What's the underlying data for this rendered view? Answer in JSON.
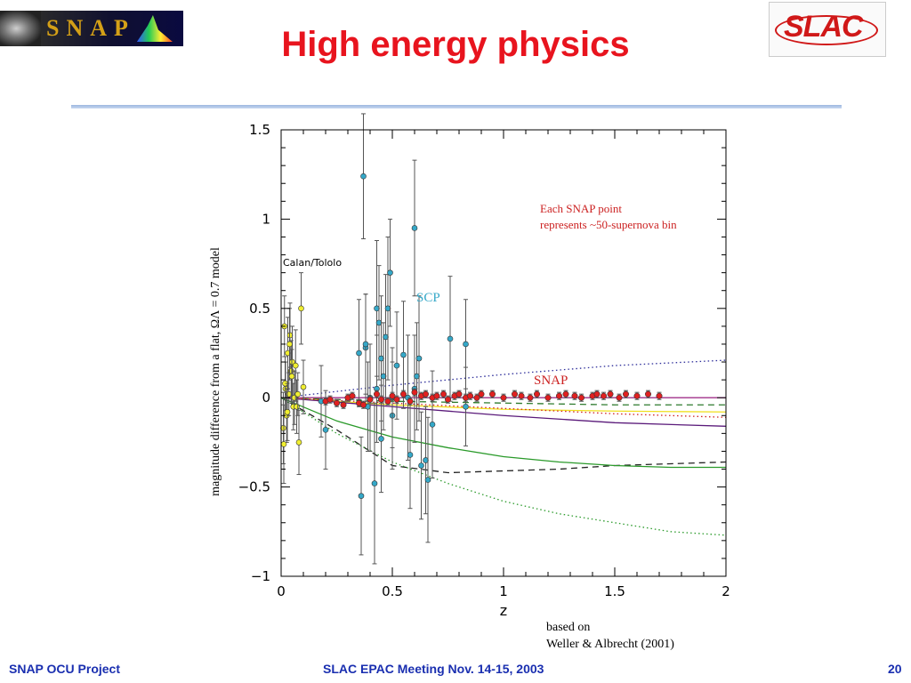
{
  "slide": {
    "title": "High energy physics",
    "footer_left": "SNAP OCU Project",
    "footer_center": "SLAC EPAC Meeting Nov. 14-15, 2003",
    "footer_right": "20"
  },
  "logos": {
    "left_word": "SNAP",
    "right_word": "SLAC"
  },
  "chart_data": {
    "type": "scatter",
    "xlabel": "z",
    "ylabel": "magnitude difference from a flat, ΩΛ = 0.7 model",
    "xlim": [
      0,
      2
    ],
    "ylim": [
      -1,
      1.5
    ],
    "xticks": [
      "0",
      "0.5",
      "1",
      "1.5",
      "2"
    ],
    "yticks": [
      "−1",
      "−0.5",
      "0",
      "0.5",
      "1",
      "1.5"
    ],
    "annotations": {
      "calan": "Calan/Tololo",
      "scp": "SCP",
      "snap": "SNAP",
      "note_line1": "Each SNAP point",
      "note_line2": "represents ~50-supernova bin",
      "credit_line1": "based on",
      "credit_line2": "Weller & Albrecht (2001)"
    },
    "colors": {
      "calan": "#f0ee30",
      "scp": "#35a8c8",
      "snap": "#e02020",
      "note": "#cc2222",
      "scp_label": "#35a8c8"
    },
    "series": [
      {
        "name": "Calan/Tololo",
        "x": [
          0.015,
          0.02,
          0.025,
          0.03,
          0.035,
          0.04,
          0.045,
          0.05,
          0.055,
          0.06,
          0.065,
          0.07,
          0.075,
          0.08,
          0.09,
          0.1,
          0.01,
          0.012,
          0.018,
          0.028,
          0.038,
          0.048
        ],
        "y": [
          0.4,
          0.05,
          -0.1,
          0.25,
          0.02,
          0.35,
          0.15,
          0.2,
          -0.05,
          0.0,
          0.18,
          -0.05,
          0.02,
          -0.25,
          0.5,
          0.06,
          -0.17,
          -0.26,
          0.08,
          -0.08,
          0.3,
          0.12
        ],
        "err": [
          0.17,
          0.15,
          0.15,
          0.2,
          0.12,
          0.18,
          0.17,
          0.2,
          0.13,
          0.15,
          0.2,
          0.15,
          0.12,
          0.18,
          0.2,
          0.15,
          0.2,
          0.22,
          0.15,
          0.16,
          0.2,
          0.15
        ]
      },
      {
        "name": "SCP",
        "x": [
          0.18,
          0.2,
          0.35,
          0.36,
          0.37,
          0.38,
          0.38,
          0.39,
          0.4,
          0.42,
          0.43,
          0.43,
          0.44,
          0.45,
          0.45,
          0.46,
          0.47,
          0.48,
          0.49,
          0.5,
          0.5,
          0.52,
          0.55,
          0.57,
          0.58,
          0.6,
          0.6,
          0.61,
          0.62,
          0.63,
          0.65,
          0.66,
          0.68,
          0.76,
          0.83,
          0.83
        ],
        "y": [
          -0.02,
          -0.18,
          0.25,
          -0.55,
          1.24,
          0.28,
          0.3,
          -0.05,
          0.0,
          -0.48,
          0.5,
          0.05,
          0.42,
          0.22,
          -0.23,
          0.12,
          0.34,
          0.5,
          0.7,
          -0.1,
          0.0,
          0.18,
          0.24,
          0.0,
          -0.32,
          0.95,
          0.05,
          0.12,
          0.22,
          -0.38,
          -0.35,
          -0.46,
          -0.15,
          0.33,
          0.3,
          -0.05
        ],
        "err": [
          0.2,
          0.22,
          0.3,
          0.33,
          0.35,
          0.3,
          0.28,
          0.25,
          0.3,
          0.45,
          0.38,
          0.3,
          0.32,
          0.35,
          0.3,
          0.3,
          0.35,
          0.4,
          0.3,
          0.3,
          0.28,
          0.3,
          0.3,
          0.35,
          0.3,
          0.38,
          0.3,
          0.3,
          0.35,
          0.3,
          0.3,
          0.35,
          0.3,
          0.35,
          0.25,
          0.22
        ]
      },
      {
        "name": "SNAP",
        "x": [
          0.2,
          0.22,
          0.25,
          0.28,
          0.3,
          0.32,
          0.35,
          0.37,
          0.4,
          0.43,
          0.45,
          0.48,
          0.5,
          0.52,
          0.55,
          0.58,
          0.6,
          0.63,
          0.65,
          0.68,
          0.7,
          0.73,
          0.75,
          0.78,
          0.8,
          0.83,
          0.85,
          0.88,
          0.9,
          0.95,
          1.0,
          1.05,
          1.08,
          1.12,
          1.15,
          1.2,
          1.25,
          1.28,
          1.32,
          1.35,
          1.4,
          1.42,
          1.45,
          1.48,
          1.52,
          1.55,
          1.6,
          1.65,
          1.7
        ],
        "y": [
          -0.02,
          -0.01,
          -0.03,
          -0.04,
          0.0,
          0.01,
          -0.03,
          -0.04,
          -0.01,
          0.02,
          -0.01,
          -0.02,
          0.01,
          -0.01,
          0.02,
          -0.02,
          0.03,
          0.01,
          0.02,
          0.0,
          0.01,
          0.02,
          -0.01,
          0.01,
          0.02,
          0.0,
          0.01,
          0.0,
          0.02,
          0.02,
          0.0,
          0.02,
          0.01,
          0.0,
          0.02,
          0.0,
          0.01,
          0.02,
          0.01,
          0.0,
          0.01,
          0.02,
          0.01,
          0.02,
          0.0,
          0.02,
          0.01,
          0.02,
          0.01
        ],
        "err": [
          0.02,
          0.02,
          0.02,
          0.02,
          0.02,
          0.02,
          0.02,
          0.02,
          0.02,
          0.02,
          0.02,
          0.02,
          0.02,
          0.02,
          0.02,
          0.02,
          0.02,
          0.02,
          0.02,
          0.02,
          0.02,
          0.02,
          0.02,
          0.02,
          0.02,
          0.02,
          0.02,
          0.02,
          0.02,
          0.02,
          0.02,
          0.02,
          0.02,
          0.02,
          0.02,
          0.02,
          0.02,
          0.02,
          0.02,
          0.02,
          0.02,
          0.02,
          0.02,
          0.02,
          0.02,
          0.02,
          0.02,
          0.02,
          0.02
        ]
      }
    ],
    "model_curves": [
      {
        "color": "#2d2d9a",
        "style": "dotted",
        "x": [
          0,
          0.5,
          1,
          1.5,
          2
        ],
        "y": [
          0,
          0.07,
          0.13,
          0.18,
          0.21
        ]
      },
      {
        "color": "#a0308a",
        "style": "solid",
        "x": [
          0,
          0.5,
          1,
          1.5,
          2
        ],
        "y": [
          0,
          0.0,
          0.0,
          0.0,
          0.0
        ]
      },
      {
        "color": "#2d7a2d",
        "style": "dashed",
        "x": [
          0,
          0.5,
          1,
          1.5,
          2
        ],
        "y": [
          0,
          -0.02,
          -0.03,
          -0.04,
          -0.04
        ]
      },
      {
        "color": "#f0e020",
        "style": "solid",
        "x": [
          0,
          0.5,
          1,
          1.5,
          2
        ],
        "y": [
          0,
          -0.04,
          -0.065,
          -0.075,
          -0.08
        ]
      },
      {
        "color": "#5a1a7a",
        "style": "solid",
        "x": [
          0,
          0.5,
          1,
          1.5,
          2
        ],
        "y": [
          0,
          -0.05,
          -0.1,
          -0.14,
          -0.16
        ]
      },
      {
        "color": "#d02020",
        "style": "dotted",
        "x": [
          0,
          0.5,
          1,
          1.5,
          2
        ],
        "y": [
          0,
          -0.03,
          -0.06,
          -0.09,
          -0.11
        ]
      },
      {
        "color": "#222222",
        "style": "dashed",
        "x": [
          0,
          0.25,
          0.5,
          0.75,
          1,
          1.25,
          1.5,
          1.75,
          2
        ],
        "y": [
          0,
          -0.18,
          -0.38,
          -0.42,
          -0.41,
          -0.4,
          -0.38,
          -0.37,
          -0.36
        ]
      },
      {
        "color": "#2a9a2a",
        "style": "solid",
        "x": [
          0,
          0.25,
          0.5,
          0.75,
          1,
          1.25,
          1.5,
          1.75,
          2
        ],
        "y": [
          0,
          -0.13,
          -0.22,
          -0.28,
          -0.33,
          -0.36,
          -0.38,
          -0.39,
          -0.39
        ]
      },
      {
        "color": "#2a9a2a",
        "style": "dotted",
        "x": [
          0,
          0.25,
          0.5,
          0.75,
          1,
          1.25,
          1.5,
          1.75,
          2
        ],
        "y": [
          0,
          -0.2,
          -0.36,
          -0.48,
          -0.58,
          -0.65,
          -0.7,
          -0.75,
          -0.77
        ]
      }
    ]
  }
}
